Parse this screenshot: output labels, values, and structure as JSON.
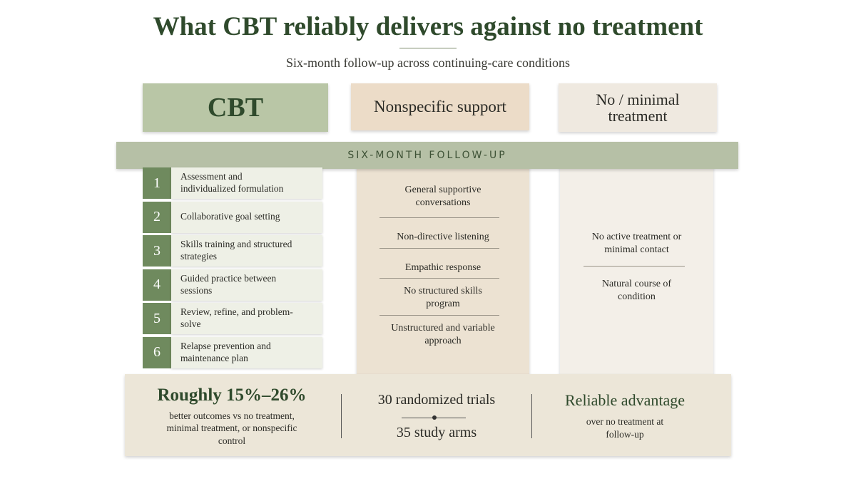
{
  "header": {
    "title": "What CBT reliably delivers against no treatment",
    "subtitle": "Six-month follow-up across continuing-care conditions"
  },
  "columns": {
    "cbt": {
      "label": "CBT",
      "steps": [
        {
          "number": 1,
          "text": "Assessment and individualized formulation"
        },
        {
          "number": 2,
          "text": "Collaborative goal setting"
        },
        {
          "number": 3,
          "text": "Skills training and structured strategies"
        },
        {
          "number": 4,
          "text": "Guided practice between sessions"
        },
        {
          "number": 5,
          "text": "Review, refine, and problem-solve"
        },
        {
          "number": 6,
          "text": "Relapse prevention and maintenance plan"
        }
      ]
    },
    "nonspecific": {
      "label": "Nonspecific support",
      "items": [
        "General supportive conversations",
        "Non-directive listening",
        "Empathic response",
        "No structured skills program",
        "Unstructured and variable approach"
      ]
    },
    "minimal": {
      "label": "No / minimal treatment",
      "items": [
        "No active treatment or minimal contact",
        "Natural course of condition"
      ]
    }
  },
  "band": {
    "label": "SIX-MONTH FOLLOW-UP"
  },
  "footer": {
    "effect": {
      "headline": "Roughly 15%–26%",
      "text": "better outcomes vs no treatment, minimal treatment, or nonspecific control"
    },
    "evidence": {
      "trials": "30 randomized trials",
      "arms": "35 study arms"
    },
    "advantage": {
      "headline": "Reliable advantage",
      "text": "over no treatment at follow-up"
    }
  }
}
